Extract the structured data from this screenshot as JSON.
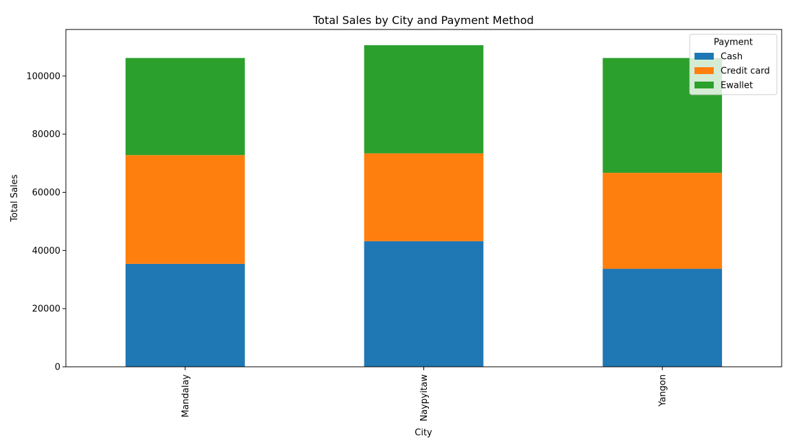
{
  "chart_data": {
    "type": "bar",
    "stacked": true,
    "title": "Total Sales by City and Payment Method",
    "xlabel": "City",
    "ylabel": "Total Sales",
    "categories": [
      "Mandalay",
      "Naypyitaw",
      "Yangon"
    ],
    "series": [
      {
        "name": "Cash",
        "color": "#1f77b4",
        "values": [
          35400,
          43200,
          33700
        ]
      },
      {
        "name": "Credit card",
        "color": "#ff7f0e",
        "values": [
          37400,
          30200,
          33000
        ]
      },
      {
        "name": "Ewallet",
        "color": "#2ca02c",
        "values": [
          33400,
          37200,
          39500
        ]
      }
    ],
    "ylim": [
      0,
      116000
    ],
    "yticks": [
      0,
      20000,
      40000,
      60000,
      80000,
      100000
    ],
    "legend": {
      "title": "Payment",
      "position": "top-right"
    },
    "grid": false
  }
}
